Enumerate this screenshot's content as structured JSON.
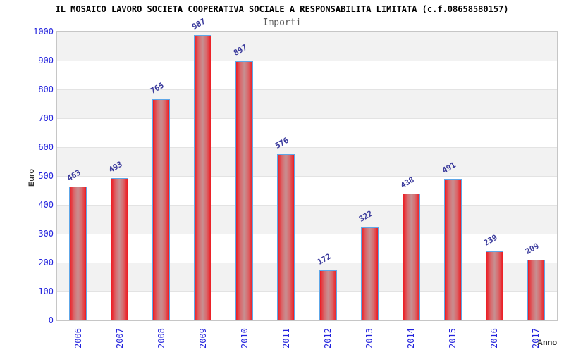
{
  "title": "IL MOSAICO LAVORO SOCIETA COOPERATIVA SOCIALE A RESPONSABILITA LIMITATA (c.f.08658580157)",
  "subtitle": "Importi",
  "chart_data": {
    "type": "bar",
    "title": "Importi",
    "categories": [
      "2006",
      "2007",
      "2008",
      "2009",
      "2010",
      "2011",
      "2012",
      "2013",
      "2014",
      "2015",
      "2016",
      "2017"
    ],
    "values": [
      463,
      493,
      765,
      987,
      897,
      576,
      172,
      322,
      438,
      491,
      239,
      209
    ],
    "xlabel": "Anno",
    "ylabel": "Euro",
    "ylim": [
      0,
      1000
    ],
    "yticks": [
      0,
      100,
      200,
      300,
      400,
      500,
      600,
      700,
      800,
      900,
      1000
    ],
    "legend": "none",
    "grid": "horizontal-bands-alternating",
    "value_labels_rotation_deg": -30,
    "colors": {
      "bar_edge": "#ed1b22",
      "bar_center": "#c79092",
      "bar_border": "#5ea7e8",
      "tick_label": "#2323dd",
      "value_label": "#3a3a9c",
      "band_gray": "#f2f2f2",
      "band_white": "#ffffff",
      "gridline": "#e3e3e3",
      "plot_border": "#c6c6c6",
      "title_color": "#000000",
      "subtitle_color": "#595959",
      "axis_label_color": "#333333"
    }
  }
}
